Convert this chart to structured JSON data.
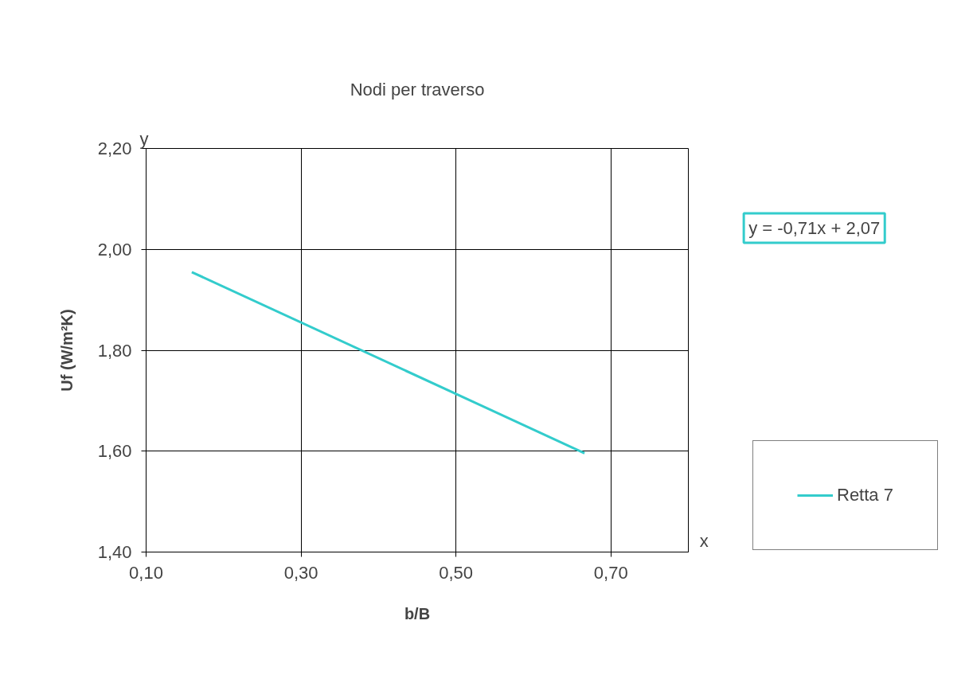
{
  "chart_data": {
    "type": "line",
    "title": "Nodi per traverso",
    "xlabel": "b/B",
    "ylabel": "Uf (W/m²K)",
    "x": [
      0.159,
      0.666
    ],
    "series": [
      {
        "name": "Retta 7",
        "color": "#33cccc",
        "values": [
          1.955,
          1.596
        ]
      }
    ],
    "xlim": [
      0.1,
      0.8
    ],
    "ylim": [
      1.4,
      2.2
    ],
    "xticks": [
      {
        "value": 0.1,
        "label": "0,10"
      },
      {
        "value": 0.3,
        "label": "0,30"
      },
      {
        "value": 0.5,
        "label": "0,50"
      },
      {
        "value": 0.7,
        "label": "0,70"
      }
    ],
    "yticks": [
      {
        "value": 1.4,
        "label": "1,40"
      },
      {
        "value": 1.6,
        "label": "1,60"
      },
      {
        "value": 1.8,
        "label": "1,80"
      },
      {
        "value": 2.0,
        "label": "2,00"
      },
      {
        "value": 2.2,
        "label": "2,20"
      }
    ],
    "annotations": [
      "y = -0,71x + 2,07",
      "y",
      "x"
    ],
    "grid": true,
    "legend": "right",
    "marker": "none",
    "line_style": "solid"
  }
}
